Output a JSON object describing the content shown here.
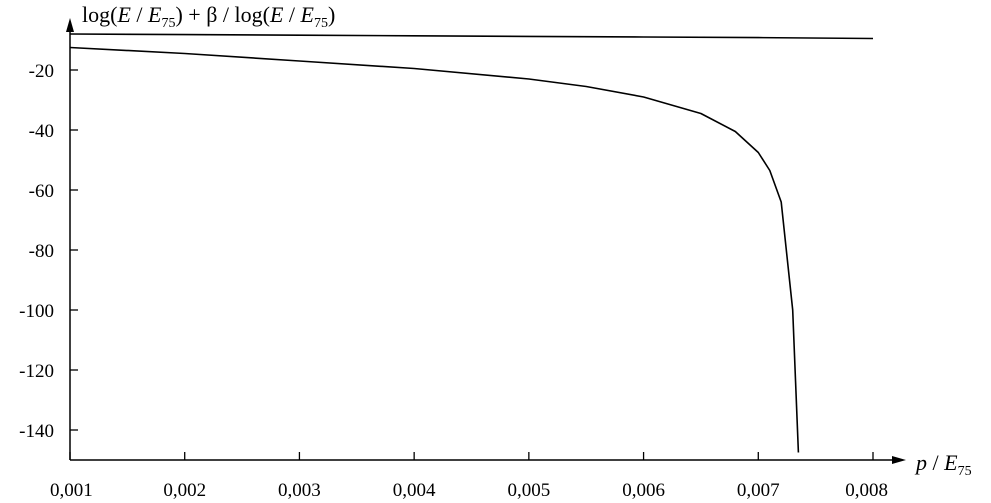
{
  "chart_data": {
    "type": "line",
    "ylabel": {
      "t1": "log(",
      "t2": "E",
      "t3": " / ",
      "t4": "E",
      "t5": "75",
      "t6": ") + β / log(",
      "t7": "E",
      "t8": " / ",
      "t9": "E",
      "t10": "75",
      "t11": ")"
    },
    "xlabel": {
      "t1": "p",
      "t2": " / ",
      "t3": "E",
      "t4": "75"
    },
    "xlim": [
      0.001,
      0.008
    ],
    "ylim": [
      -150,
      -5
    ],
    "x_ticks": [
      0.001,
      0.002,
      0.003,
      0.004,
      0.005,
      0.006,
      0.007,
      0.008
    ],
    "x_tick_labels": [
      "0,001",
      "0,002",
      "0,003",
      "0,004",
      "0,005",
      "0,006",
      "0,007",
      "0,008"
    ],
    "y_ticks": [
      -20,
      -40,
      -60,
      -80,
      -100,
      -120,
      -140
    ],
    "y_tick_labels": [
      "-20",
      "-40",
      "-60",
      "-80",
      "-100",
      "-120",
      "-140"
    ],
    "series": [
      {
        "x": [
          0.001,
          0.002,
          0.003,
          0.004,
          0.005,
          0.006,
          0.007,
          0.008
        ],
        "y": [
          -8.0,
          -8.2,
          -8.4,
          -8.6,
          -8.8,
          -9.0,
          -9.2,
          -9.5
        ]
      },
      {
        "x": [
          0.001,
          0.002,
          0.003,
          0.004,
          0.005,
          0.0055,
          0.006,
          0.0065,
          0.0068,
          0.007,
          0.0071,
          0.0072,
          0.0073,
          0.00735
        ],
        "y": [
          -12.5,
          -14.5,
          -17.0,
          -19.5,
          -23.0,
          -25.5,
          -29.0,
          -34.5,
          -40.5,
          -47.5,
          -53.5,
          -64.0,
          -100.0,
          -147.5
        ]
      }
    ]
  }
}
